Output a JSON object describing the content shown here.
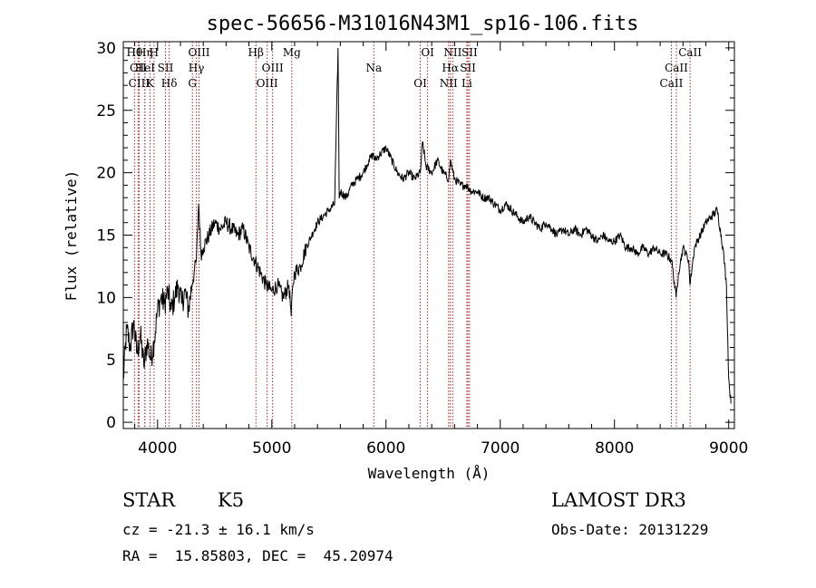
{
  "chart_data": {
    "type": "line",
    "title": "spec-56656-M31016N43M1_sp16-106.fits",
    "xlabel": "Wavelength (Å)",
    "ylabel": "Flux (relative)",
    "xlim": [
      3700,
      9050
    ],
    "ylim": [
      -0.5,
      30.5
    ],
    "xticks": [
      4000,
      5000,
      6000,
      7000,
      8000,
      9000
    ],
    "yticks": [
      0,
      5,
      10,
      15,
      20,
      25,
      30
    ],
    "grid": false,
    "series": [
      {
        "name": "flux",
        "x": [
          3700,
          3730,
          3760,
          3790,
          3820,
          3850,
          3880,
          3910,
          3940,
          3970,
          4000,
          4030,
          4060,
          4090,
          4120,
          4150,
          4180,
          4210,
          4240,
          4270,
          4300,
          4320,
          4340,
          4360,
          4380,
          4400,
          4450,
          4500,
          4550,
          4600,
          4650,
          4700,
          4750,
          4800,
          4850,
          4900,
          4950,
          5000,
          5050,
          5100,
          5150,
          5170,
          5185,
          5200,
          5250,
          5300,
          5350,
          5400,
          5450,
          5500,
          5550,
          5580,
          5590,
          5600,
          5650,
          5700,
          5750,
          5800,
          5850,
          5890,
          5900,
          5950,
          6000,
          6050,
          6100,
          6150,
          6200,
          6250,
          6300,
          6320,
          6350,
          6400,
          6450,
          6500,
          6550,
          6563,
          6600,
          6650,
          6700,
          6750,
          6800,
          6850,
          6900,
          6950,
          7000,
          7050,
          7100,
          7150,
          7200,
          7250,
          7300,
          7350,
          7400,
          7450,
          7500,
          7550,
          7600,
          7650,
          7700,
          7750,
          7800,
          7850,
          7900,
          7950,
          8000,
          8050,
          8100,
          8150,
          8200,
          8250,
          8300,
          8350,
          8400,
          8450,
          8500,
          8540,
          8560,
          8600,
          8650,
          8660,
          8700,
          8750,
          8800,
          8850,
          8900,
          8950,
          8980,
          9000,
          9020
        ],
        "values": [
          3.5,
          7.5,
          6,
          8,
          5.5,
          7,
          4.5,
          6.5,
          5,
          6.5,
          9,
          10,
          9.5,
          10.5,
          9,
          10,
          11,
          9.5,
          10.5,
          9,
          11,
          12,
          13,
          17.5,
          13.5,
          14,
          15,
          16,
          15.5,
          16,
          15.5,
          15,
          15.5,
          14,
          13,
          12,
          11,
          10.5,
          11,
          10,
          11,
          8.5,
          11,
          12,
          12.5,
          14,
          15,
          16,
          16.5,
          17,
          17.5,
          30,
          18,
          18.5,
          18,
          19,
          19.5,
          20,
          21,
          21.5,
          21,
          21.5,
          22,
          21,
          20,
          19.5,
          20,
          19.5,
          20,
          22.5,
          20.5,
          20,
          21,
          20,
          19.5,
          21,
          19.5,
          19,
          19,
          18.5,
          18.5,
          18,
          18,
          17.5,
          17,
          17.5,
          17,
          16.5,
          16,
          16.5,
          16,
          15.5,
          16,
          15.5,
          15,
          15.5,
          15,
          15.5,
          15,
          15.5,
          15,
          14.5,
          15,
          14.5,
          14.5,
          15,
          14,
          14,
          13.5,
          14,
          13.5,
          14,
          13.5,
          13.5,
          13,
          10,
          12,
          14,
          13,
          11,
          14,
          15,
          16,
          16.5,
          17,
          14,
          11,
          3.5,
          1.5
        ]
      }
    ],
    "line_markers": [
      {
        "label": "Hθ",
        "x": 3798
      },
      {
        "label": "CII",
        "x": 3830
      },
      {
        "label": "CIII",
        "x": 3838
      },
      {
        "label": "Hη",
        "x": 3889
      },
      {
        "label": "HeI",
        "x": 3889
      },
      {
        "label": "K",
        "x": 3934
      },
      {
        "label": "H",
        "x": 3969
      },
      {
        "label": "SII",
        "x": 4069
      },
      {
        "label": "Hδ",
        "x": 4102
      },
      {
        "label": "OIII",
        "x": 4363
      },
      {
        "label": "Hγ",
        "x": 4340
      },
      {
        "label": "G",
        "x": 4305
      },
      {
        "label": "Hβ",
        "x": 4861
      },
      {
        "label": "OIII",
        "x": 5007
      },
      {
        "label": "OIII",
        "x": 4959
      },
      {
        "label": "Mg",
        "x": 5175
      },
      {
        "label": "Na",
        "x": 5893
      },
      {
        "label": "OI",
        "x": 6300
      },
      {
        "label": "OI",
        "x": 6364
      },
      {
        "label": "Hα",
        "x": 6563
      },
      {
        "label": "NII",
        "x": 6548
      },
      {
        "label": "NII",
        "x": 6584
      },
      {
        "label": "SII",
        "x": 6717
      },
      {
        "label": "Li",
        "x": 6708
      },
      {
        "label": "SII",
        "x": 6731
      },
      {
        "label": "CaII",
        "x": 8542
      },
      {
        "label": "CaII",
        "x": 8498
      },
      {
        "label": "CaII",
        "x": 8662
      }
    ]
  },
  "info": {
    "object_class": "STAR",
    "subclass": "K5",
    "survey": "LAMOST DR3",
    "redshift": "cz = -21.3 ± 16.1 km/s",
    "obs_date": "Obs-Date: 20131229",
    "coords": "RA =  15.85803, DEC =  45.20974"
  }
}
